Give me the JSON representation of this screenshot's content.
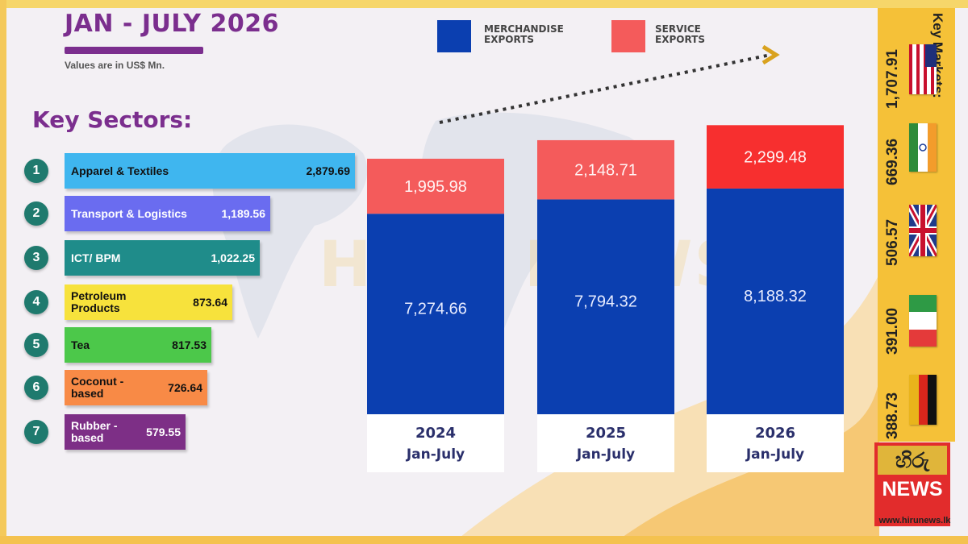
{
  "header": {
    "title": "JAN - JULY 2026",
    "note": "Values are in US$ Mn."
  },
  "key_sectors": {
    "title": "Key Sectors:",
    "items": [
      {
        "num": "1",
        "label": "Apparel & Textiles",
        "value": "2,879.69",
        "color": "#3fb6ef",
        "text_color": "#111111"
      },
      {
        "num": "2",
        "label": "Transport & Logistics",
        "value": "1,189.56",
        "color": "#6a6cf0",
        "text_color": "#ffffff"
      },
      {
        "num": "3",
        "label": "ICT/ BPM",
        "value": "1,022.25",
        "color": "#1f8c8a",
        "text_color": "#ffffff"
      },
      {
        "num": "4",
        "label": "Petroleum Products",
        "value": "873.64",
        "color": "#f7e23c",
        "text_color": "#111111"
      },
      {
        "num": "5",
        "label": "Tea",
        "value": "817.53",
        "color": "#4cc84a",
        "text_color": "#111111"
      },
      {
        "num": "6",
        "label": "Coconut - based",
        "value": "726.64",
        "color": "#f88a46",
        "text_color": "#111111"
      },
      {
        "num": "7",
        "label": "Rubber - based",
        "value": "579.55",
        "color": "#7d2f86",
        "text_color": "#ffffff"
      }
    ]
  },
  "legend": {
    "merchandise": "MERCHANDISE EXPORTS",
    "service": "SERVICE EXPORTS",
    "merchandise_color": "#0b3fb0",
    "service_color": "#f45b5b"
  },
  "chart_data": {
    "type": "bar",
    "stacked": true,
    "categories": [
      "2024 Jan-July",
      "2025 Jan-July",
      "2026 Jan-July"
    ],
    "series": [
      {
        "name": "MERCHANDISE EXPORTS",
        "values": [
          7274.66,
          7794.32,
          8188.32
        ],
        "labels": [
          "7,274.66",
          "7,794.32",
          "8,188.32"
        ],
        "color": "#0b3fb0"
      },
      {
        "name": "SERVICE EXPORTS",
        "values": [
          1995.98,
          2148.71,
          2299.48
        ],
        "labels": [
          "1,995.98",
          "2,148.71",
          "2,299.48"
        ],
        "colors": [
          "#f45b5b",
          "#f45b5b",
          "#f72f2f"
        ]
      }
    ],
    "year_labels": [
      "2024",
      "2025",
      "2026"
    ],
    "period_labels": [
      "Jan-July",
      "Jan-July",
      "Jan-July"
    ],
    "grid": false,
    "trend_arrow": true
  },
  "key_markets": {
    "title": "Key Markets:",
    "items": [
      {
        "value": "1,707.91",
        "flag": "usa-flag"
      },
      {
        "value": "669.36",
        "flag": "india-flag"
      },
      {
        "value": "506.57",
        "flag": "uk-flag"
      },
      {
        "value": "391.00",
        "flag": "italy-flag"
      },
      {
        "value": "388.73",
        "flag": "germany-flag"
      }
    ]
  },
  "branding": {
    "logo_top": "හිරු",
    "logo_news": "NEWS",
    "url": "www.hirunews.lk",
    "watermark": "HIRU NEWS"
  }
}
